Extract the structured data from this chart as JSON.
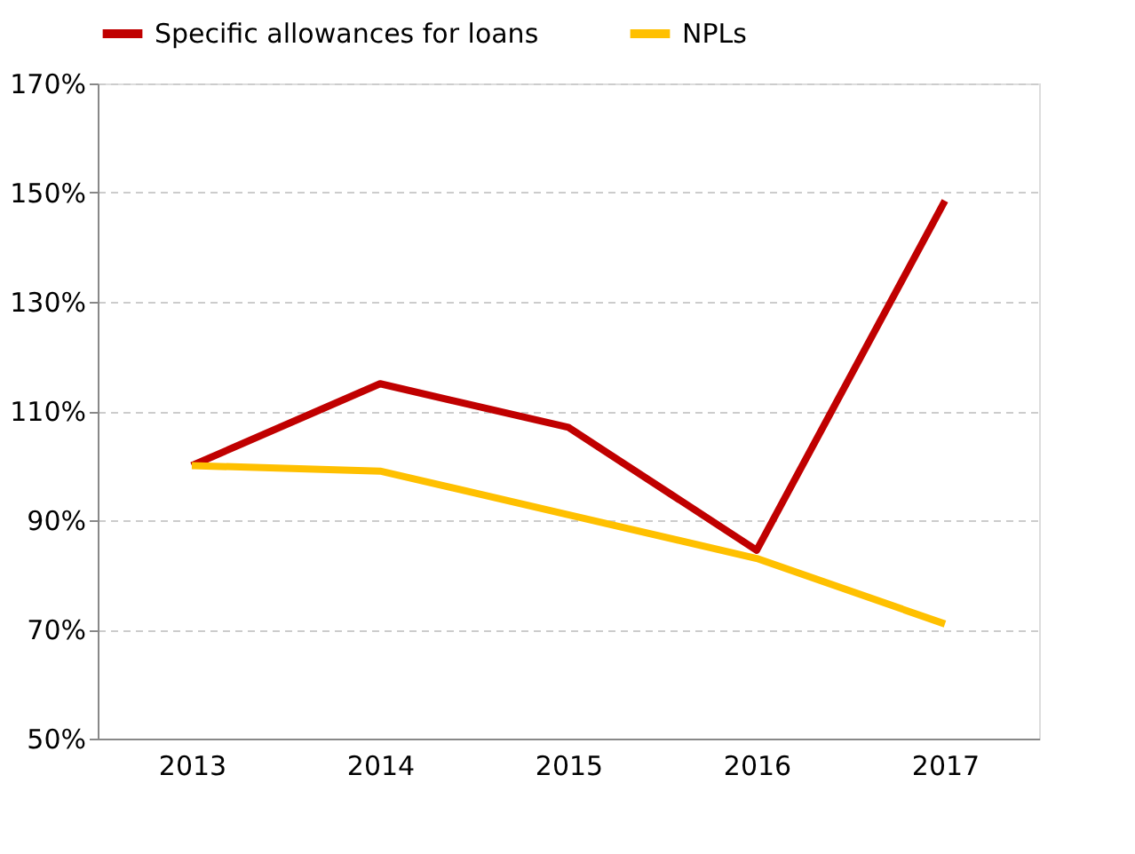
{
  "chart_data": {
    "type": "line",
    "categories": [
      "2013",
      "2014",
      "2015",
      "2016",
      "2017"
    ],
    "series": [
      {
        "name": "Specific allowances for loans",
        "color": "#c00000",
        "values": [
          100,
          115,
          107,
          84.5,
          148.5
        ]
      },
      {
        "name": "NPLs",
        "color": "#ffc000",
        "values": [
          100,
          99,
          91,
          83,
          71
        ]
      }
    ],
    "ylim": [
      50,
      170
    ],
    "yticks": [
      {
        "value": 50,
        "label": "50%"
      },
      {
        "value": 70,
        "label": "70%"
      },
      {
        "value": 90,
        "label": "90%"
      },
      {
        "value": 110,
        "label": "110%"
      },
      {
        "value": 130,
        "label": "130%"
      },
      {
        "value": 150,
        "label": "150%"
      },
      {
        "value": 170,
        "label": "170%"
      }
    ],
    "grid": "y",
    "legend": "top",
    "marker": "none",
    "line_style": "solid"
  }
}
